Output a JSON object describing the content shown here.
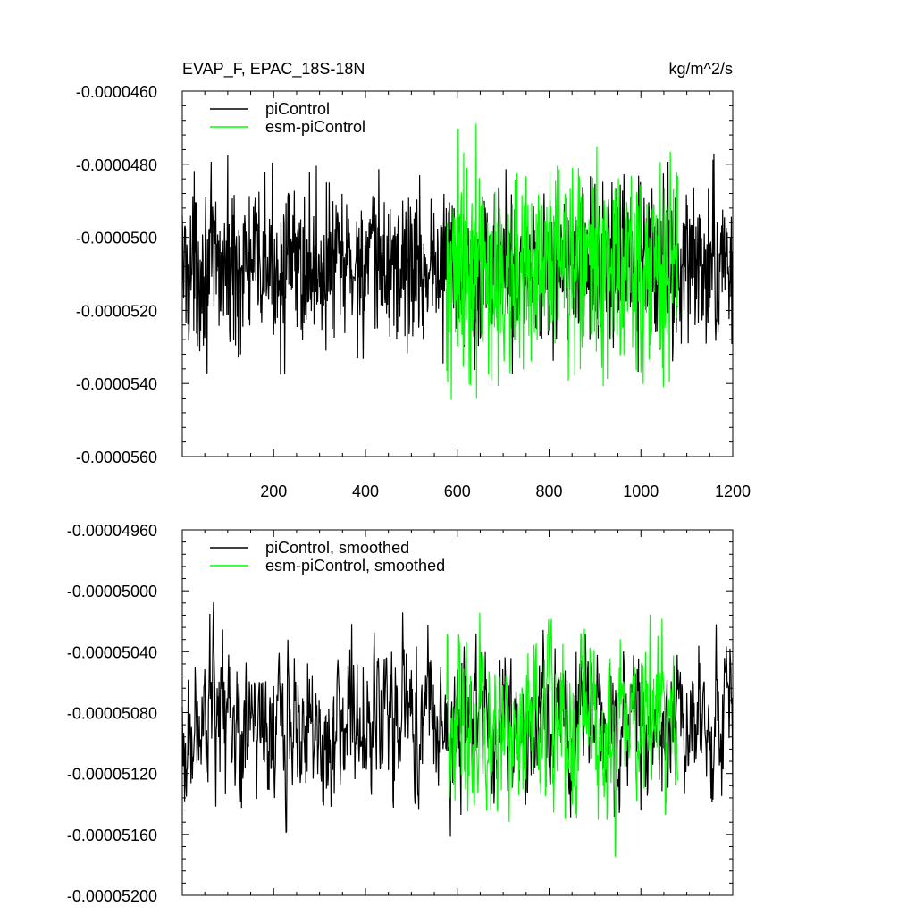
{
  "chart_data": [
    {
      "type": "line",
      "title_left": "EVAP_F, EPAC_18S-18N",
      "title_right": "kg/m^2/s",
      "xlim": [
        1,
        1200
      ],
      "ylim": [
        -5.6e-05,
        -4.6e-05
      ],
      "xticks": [
        200,
        400,
        600,
        800,
        1000,
        1200
      ],
      "xtick_labels": [
        "200",
        "400",
        "600",
        "800",
        "1000",
        "1200"
      ],
      "yticks": [
        -4.6e-05,
        -4.8e-05,
        -5e-05,
        -5.2e-05,
        -5.4e-05,
        -5.6e-05
      ],
      "ytick_labels": [
        "-0.0000460",
        "-0.0000480",
        "-0.0000500",
        "-0.0000520",
        "-0.0000540",
        "-0.0000560"
      ],
      "legend_position": "top-left",
      "series": [
        {
          "name": "piControl",
          "color": "#000000",
          "x_start": 1,
          "x_end": 1200,
          "mean": -5.08e-05,
          "spread": 1e-06
        },
        {
          "name": "esm-piControl",
          "color": "#00ff00",
          "x_start": 576,
          "x_end": 1080,
          "mean": -5.09e-05,
          "spread": 1.3e-06
        }
      ]
    },
    {
      "type": "line",
      "xlim": [
        1,
        1200
      ],
      "ylim": [
        -5.2e-05,
        -4.96e-05
      ],
      "xticks": [
        200,
        400,
        600,
        800,
        1000,
        1200
      ],
      "xtick_labels": [],
      "yticks": [
        -4.96e-05,
        -5e-05,
        -5.04e-05,
        -5.08e-05,
        -5.12e-05,
        -5.16e-05,
        -5.2e-05
      ],
      "ytick_labels": [
        "-0.00004960",
        "-0.00005000",
        "-0.00005040",
        "-0.00005080",
        "-0.00005120",
        "-0.00005160",
        "-0.00005200"
      ],
      "legend_position": "top-left",
      "series": [
        {
          "name": "piControl, smoothed",
          "color": "#000000",
          "x_start": 1,
          "x_end": 1200,
          "mean": -5.085e-05,
          "spread": 2.5e-07
        },
        {
          "name": "esm-piControl, smoothed",
          "color": "#00ff00",
          "x_start": 576,
          "x_end": 1080,
          "mean": -5.09e-05,
          "spread": 3e-07
        }
      ]
    }
  ]
}
